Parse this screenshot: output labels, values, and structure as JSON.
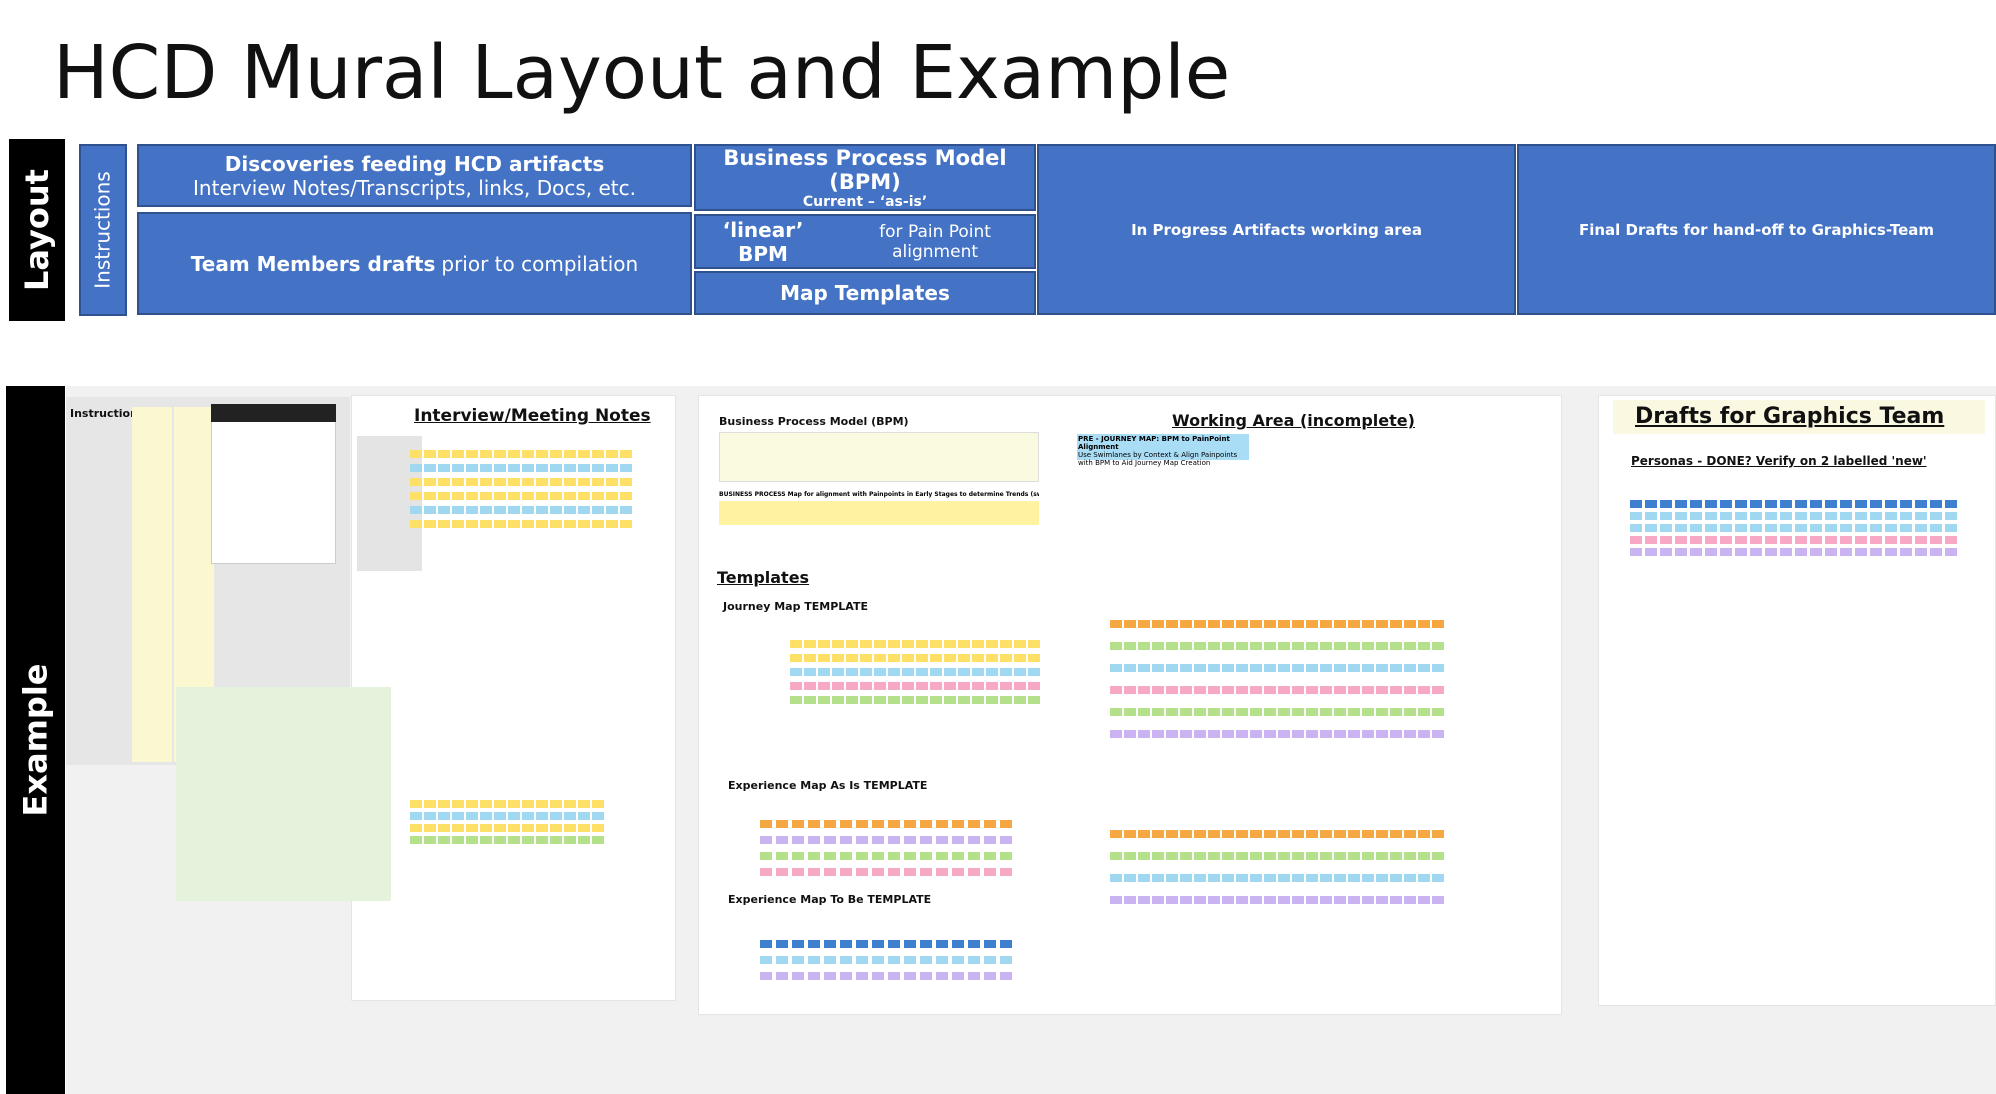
{
  "header": {
    "title": "HCD Mural Layout and Example"
  },
  "layout": {
    "label": "Layout",
    "instructions": "Instructions",
    "discoveries": {
      "title": "Discoveries feeding HCD artifacts",
      "subtitle": "Interview Notes/Transcripts, links, Docs, etc."
    },
    "team": {
      "bold": "Team Members drafts",
      "rest": "prior to compilation"
    },
    "bpm": {
      "title": "Business Process Model (BPM)",
      "subtitle": "Current – ‘as-is’"
    },
    "linear": {
      "bold": "‘linear’ BPM",
      "rest": "for Pain Point alignment"
    },
    "map_templates": "Map Templates",
    "in_progress": "In Progress Artifacts working area",
    "final": "Final Drafts for hand-off to Graphics-Team"
  },
  "example": {
    "label": "Example",
    "instructions": "Instructions",
    "interview": "Interview/Meeting Notes",
    "bpm": "Business Process Model (BPM)",
    "bpm_note": "BUSINESS PROCESS Map for alignment with Painpoints in Early Stages to determine Trends (swimlanes recommended)",
    "templates": "Templates",
    "journey": "Journey Map TEMPLATE",
    "exp_as_is": "Experience Map As Is TEMPLATE",
    "exp_to_be": "Experience Map To Be TEMPLATE",
    "working": "Working Area (incomplete)",
    "pre_journey": "PRE - JOURNEY MAP:   BPM to PainPoint Alignment",
    "pre_journey_note": "Use Swimlanes by Context & Align Painpoints with BPM to Aid Journey Map Creation",
    "drafts": "Drafts for Graphics Team",
    "personas": "Personas - DONE? Verify on 2 labelled 'new'"
  }
}
